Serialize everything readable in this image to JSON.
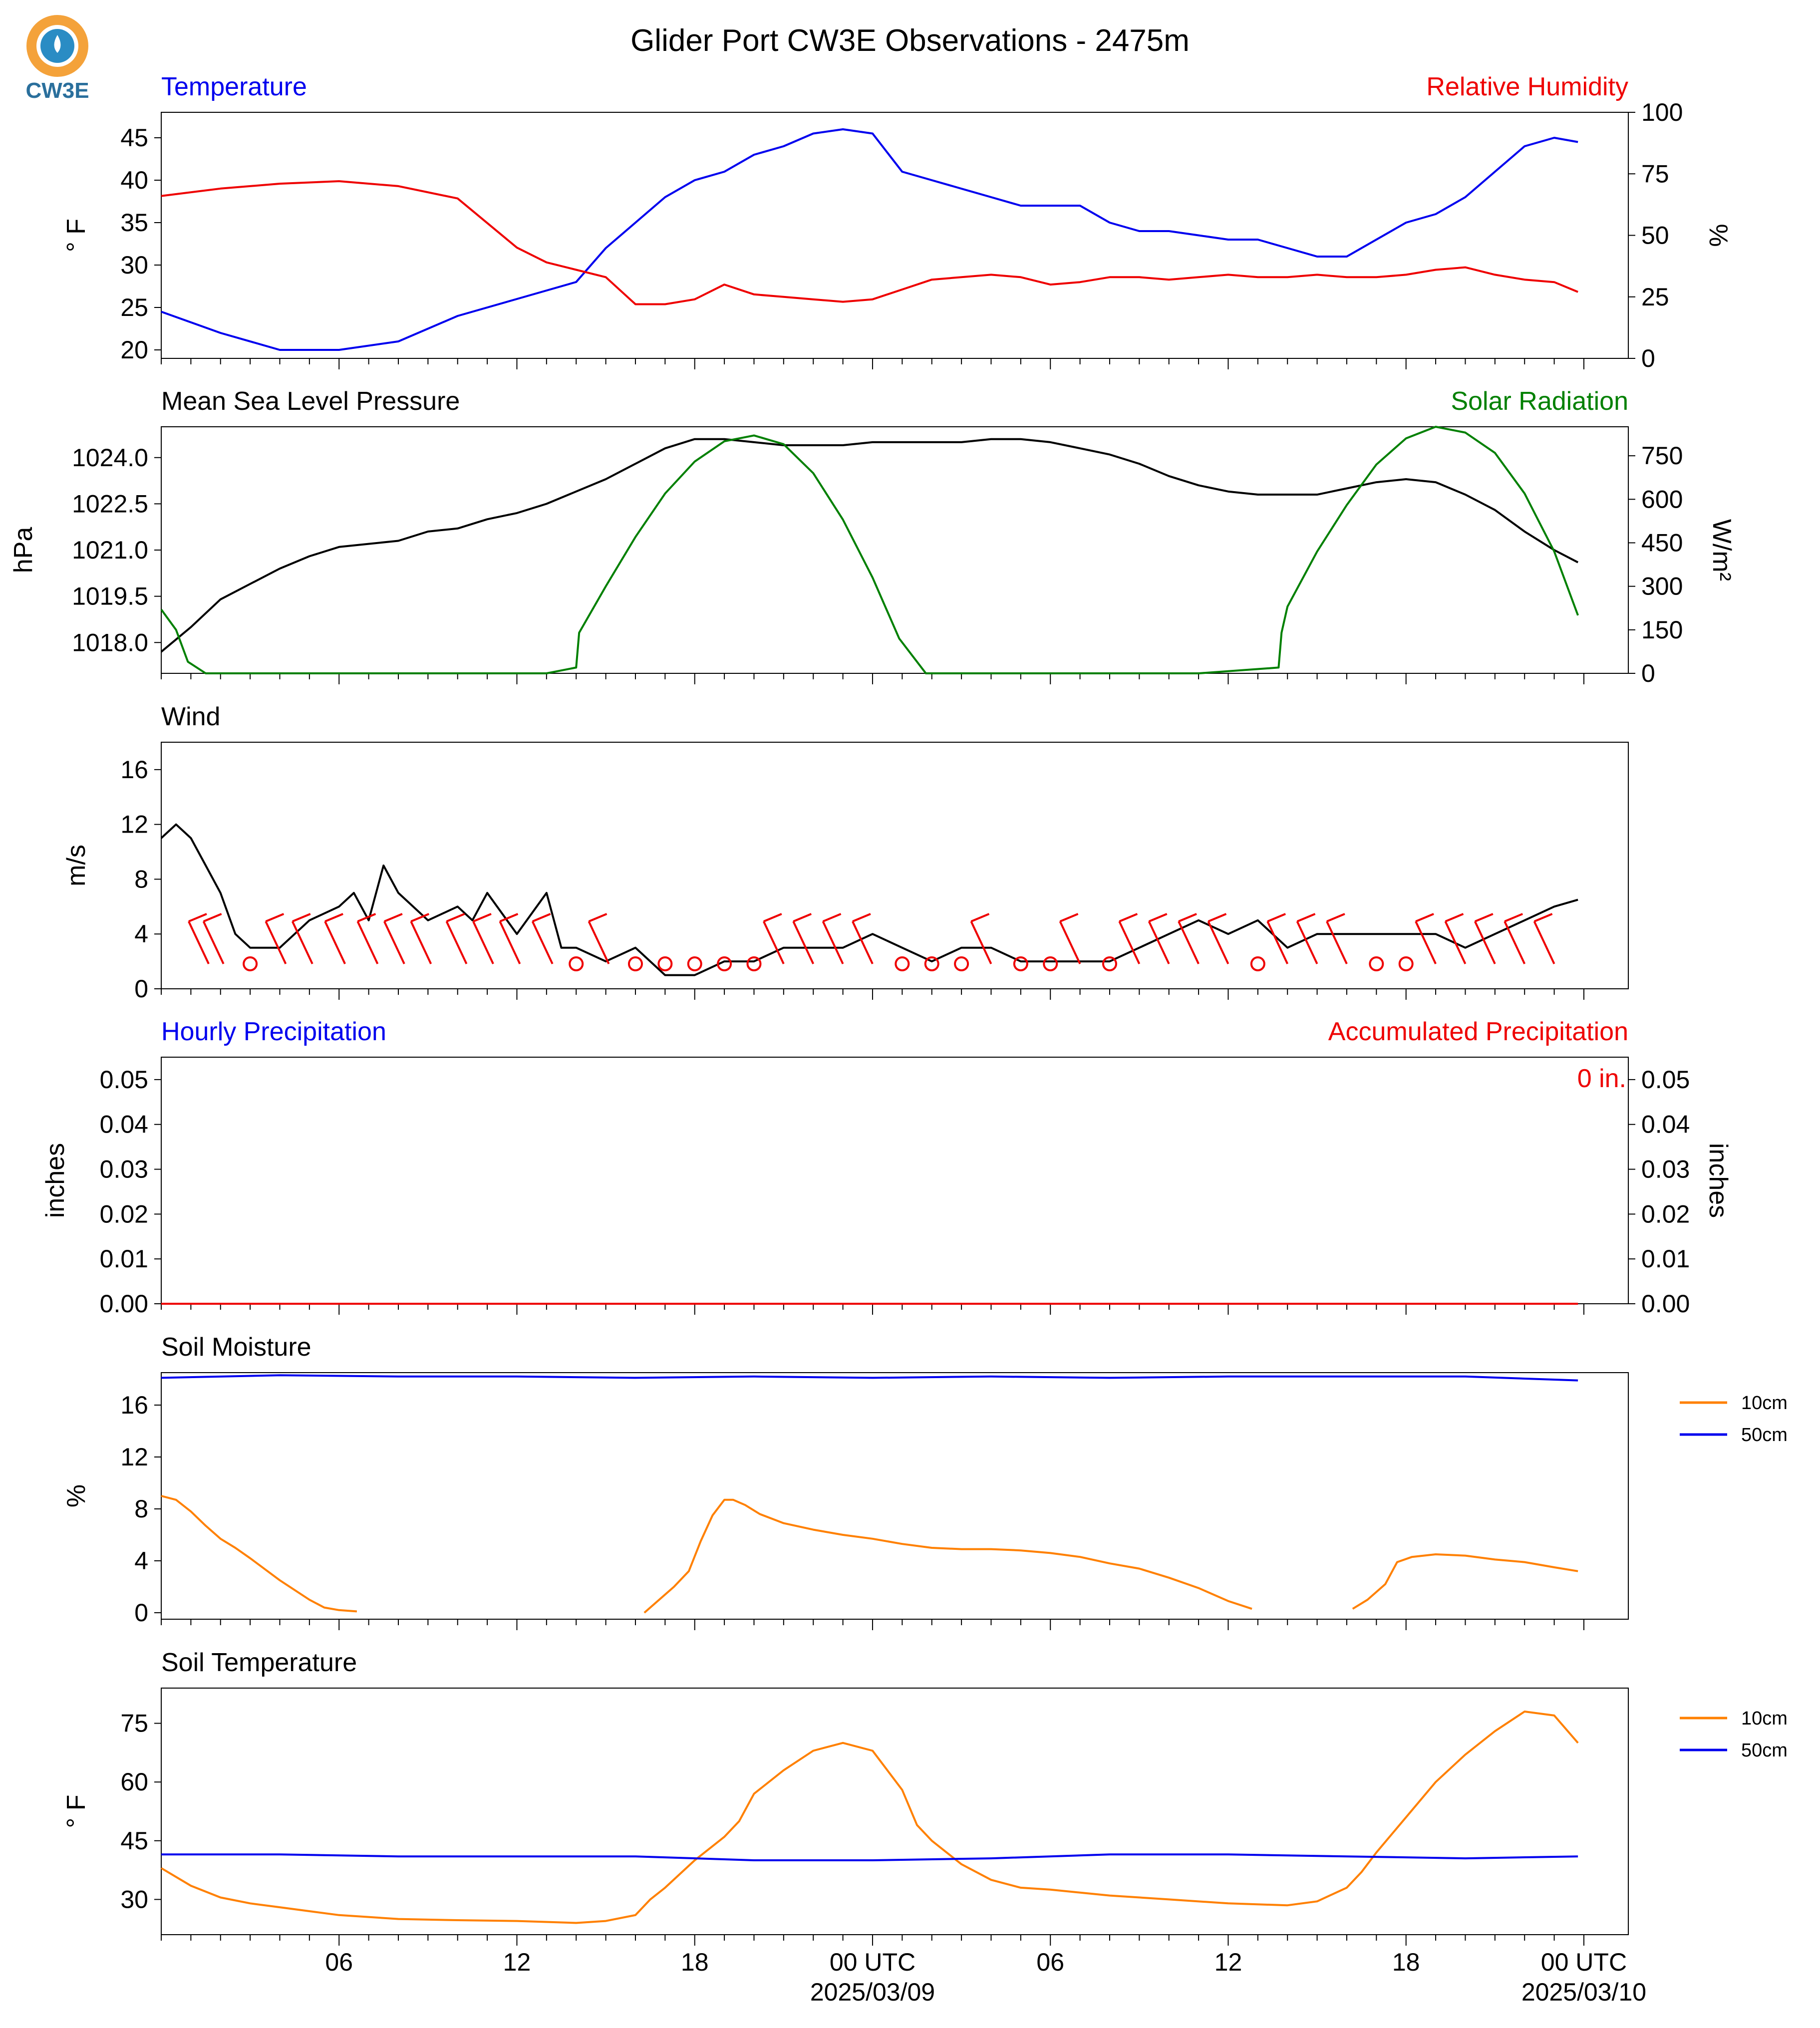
{
  "title": "Glider Port CW3E Observations - 2475m",
  "logo_text": "CW3E",
  "colors": {
    "temperature": "#0000ee",
    "humidity": "#ee0000",
    "pressure": "#000000",
    "solar": "#008000",
    "wind": "#000000",
    "wind_barb": "#ee0000",
    "soil_10cm": "#ff8000",
    "soil_50cm": "#0000ee",
    "logo_orange": "#f4a23a",
    "logo_blue": "#2a8cc4"
  },
  "x_axis": {
    "ticks": [
      "06",
      "12",
      "18",
      "00 UTC",
      "06",
      "12",
      "18",
      "00 UTC"
    ],
    "date_labels": [
      "2025/03/09",
      "2025/03/10"
    ]
  },
  "chart_data": [
    {
      "type": "line",
      "panel": "temperature_humidity",
      "left_title": "Temperature",
      "right_title": "Relative Humidity",
      "ylabel_left": "° F",
      "ylabel_right": "%",
      "yticks_left": [
        "20",
        "25",
        "30",
        "35",
        "40",
        "45"
      ],
      "yticks_right": [
        "0",
        "25",
        "50",
        "75",
        "100"
      ],
      "ylim_left": [
        19,
        48
      ],
      "ylim_right": [
        0,
        100
      ],
      "hours": [
        0,
        2,
        4,
        6,
        8,
        10,
        12,
        13,
        14,
        15,
        16,
        17,
        18,
        19,
        20,
        21,
        22,
        23,
        24,
        25,
        26,
        27,
        28,
        29,
        30,
        31,
        32,
        33,
        34,
        35,
        36,
        37,
        38,
        39,
        40,
        41,
        42,
        43,
        44,
        45,
        46,
        47,
        47.8
      ],
      "series": [
        {
          "name": "Temperature",
          "axis": "left",
          "values": [
            24.5,
            22,
            20,
            20,
            21,
            24,
            26,
            27,
            28,
            32,
            35,
            38,
            40,
            41,
            43,
            44,
            45.5,
            46,
            45.5,
            41,
            40,
            39,
            38,
            37,
            37,
            37,
            35,
            34,
            34,
            33.5,
            33,
            33,
            32,
            31,
            31,
            33,
            35,
            36,
            38,
            41,
            44,
            45,
            44.5
          ]
        },
        {
          "name": "Relative Humidity",
          "axis": "right",
          "values": [
            66,
            69,
            71,
            72,
            70,
            65,
            45,
            39,
            36,
            33,
            22,
            22,
            24,
            30,
            26,
            25,
            24,
            23,
            24,
            28,
            32,
            33,
            34,
            33,
            30,
            31,
            33,
            33,
            32,
            33,
            34,
            33,
            33,
            34,
            33,
            33,
            34,
            36,
            37,
            34,
            32,
            31,
            27
          ]
        }
      ]
    },
    {
      "type": "line",
      "panel": "pressure_solar",
      "left_title": "Mean Sea Level Pressure",
      "right_title": "Solar Radiation",
      "ylabel_left": "hPa",
      "ylabel_right": "W/m²",
      "yticks_left": [
        "1018.0",
        "1019.5",
        "1021.0",
        "1022.5",
        "1024.0"
      ],
      "yticks_right": [
        "0",
        "150",
        "300",
        "450",
        "600",
        "750"
      ],
      "ylim_left": [
        1017,
        1025
      ],
      "ylim_right": [
        0,
        850
      ],
      "series": [
        {
          "name": "Mean Sea Level Pressure",
          "axis": "left",
          "hours": [
            0,
            1,
            2,
            3,
            4,
            5,
            6,
            7,
            8,
            9,
            10,
            11,
            12,
            13,
            14,
            15,
            16,
            17,
            18,
            19,
            20,
            21,
            22,
            23,
            24,
            25,
            26,
            27,
            28,
            29,
            30,
            31,
            32,
            33,
            34,
            35,
            36,
            37,
            38,
            39,
            40,
            41,
            42,
            43,
            44,
            45,
            46,
            47,
            47.8
          ],
          "values": [
            1017.7,
            1018.5,
            1019.4,
            1019.9,
            1020.4,
            1020.8,
            1021.1,
            1021.2,
            1021.3,
            1021.6,
            1021.7,
            1022.0,
            1022.2,
            1022.5,
            1022.9,
            1023.3,
            1023.8,
            1024.3,
            1024.6,
            1024.6,
            1024.5,
            1024.4,
            1024.4,
            1024.4,
            1024.5,
            1024.5,
            1024.5,
            1024.5,
            1024.6,
            1024.6,
            1024.5,
            1024.3,
            1024.1,
            1023.8,
            1023.4,
            1023.1,
            1022.9,
            1022.8,
            1022.8,
            1022.8,
            1023.0,
            1023.2,
            1023.3,
            1023.2,
            1022.8,
            1022.3,
            1021.6,
            1021.0,
            1020.6
          ]
        },
        {
          "name": "Solar Radiation",
          "axis": "right",
          "hours": [
            0,
            0.5,
            0.9,
            1.5,
            5,
            10,
            13,
            14.0,
            14.1,
            15,
            16,
            17,
            18,
            19,
            20,
            21,
            22,
            23,
            24,
            24.9,
            25.8,
            30,
            35,
            37.7,
            37.8,
            38,
            39,
            40,
            41,
            42,
            43,
            44,
            45,
            46,
            47,
            47.8
          ],
          "values": [
            220,
            150,
            40,
            0,
            0,
            0,
            0,
            20,
            140,
            300,
            470,
            620,
            730,
            800,
            820,
            790,
            690,
            530,
            330,
            120,
            0,
            0,
            0,
            20,
            140,
            230,
            420,
            580,
            720,
            810,
            850,
            830,
            760,
            620,
            420,
            200
          ]
        }
      ]
    },
    {
      "type": "line",
      "panel": "wind",
      "left_title": "Wind",
      "ylabel_left": "m/s",
      "yticks_left": [
        "0",
        "4",
        "8",
        "12",
        "16"
      ],
      "ylim_left": [
        0,
        18
      ],
      "hours": [
        0,
        0.5,
        1,
        1.5,
        2,
        2.5,
        3,
        4,
        5,
        6,
        6.5,
        7,
        7.5,
        8,
        9,
        10,
        10.5,
        11,
        12,
        13,
        13.5,
        14,
        15,
        16,
        17,
        18,
        19,
        20,
        21,
        22,
        23,
        24,
        25,
        26,
        27,
        28,
        29,
        30,
        31,
        32,
        33,
        34,
        35,
        36,
        37,
        38,
        39,
        40,
        41,
        42,
        43,
        44,
        45,
        46,
        47,
        47.8
      ],
      "series": [
        {
          "name": "Wind",
          "values": [
            11,
            12,
            11,
            9,
            7,
            4,
            3,
            3,
            5,
            6,
            7,
            5,
            9,
            7,
            5,
            6,
            5,
            7,
            4,
            7,
            3,
            3,
            2,
            3,
            1,
            1,
            2,
            2,
            3,
            3,
            3,
            4,
            3,
            2,
            3,
            3,
            2,
            2,
            2,
            2,
            3,
            4,
            5,
            4,
            5,
            3,
            4,
            4,
            4,
            4,
            4,
            3,
            4,
            5,
            6,
            6.5
          ]
        }
      ],
      "barbs": [
        {
          "hour": 1.6,
          "calm": false
        },
        {
          "hour": 2.1,
          "calm": false
        },
        {
          "hour": 3.0,
          "calm": true
        },
        {
          "hour": 4.2,
          "calm": false
        },
        {
          "hour": 5.1,
          "calm": false
        },
        {
          "hour": 6.2,
          "calm": false
        },
        {
          "hour": 7.3,
          "calm": false
        },
        {
          "hour": 8.2,
          "calm": false
        },
        {
          "hour": 9.1,
          "calm": false
        },
        {
          "hour": 10.3,
          "calm": false
        },
        {
          "hour": 11.2,
          "calm": false
        },
        {
          "hour": 12.1,
          "calm": false
        },
        {
          "hour": 13.2,
          "calm": false
        },
        {
          "hour": 14.0,
          "calm": true
        },
        {
          "hour": 15.1,
          "calm": false
        },
        {
          "hour": 16.0,
          "calm": true
        },
        {
          "hour": 17.0,
          "calm": true
        },
        {
          "hour": 18.0,
          "calm": true
        },
        {
          "hour": 19.0,
          "calm": true
        },
        {
          "hour": 20.0,
          "calm": true
        },
        {
          "hour": 21.0,
          "calm": false
        },
        {
          "hour": 22.0,
          "calm": false
        },
        {
          "hour": 23.0,
          "calm": false
        },
        {
          "hour": 24.0,
          "calm": false
        },
        {
          "hour": 25.0,
          "calm": true
        },
        {
          "hour": 26.0,
          "calm": true
        },
        {
          "hour": 27.0,
          "calm": true
        },
        {
          "hour": 28.0,
          "calm": false
        },
        {
          "hour": 29.0,
          "calm": true
        },
        {
          "hour": 30.0,
          "calm": true
        },
        {
          "hour": 31.0,
          "calm": false
        },
        {
          "hour": 32.0,
          "calm": true
        },
        {
          "hour": 33.0,
          "calm": false
        },
        {
          "hour": 34.0,
          "calm": false
        },
        {
          "hour": 35.0,
          "calm": false
        },
        {
          "hour": 36.0,
          "calm": false
        },
        {
          "hour": 37.0,
          "calm": true
        },
        {
          "hour": 38.0,
          "calm": false
        },
        {
          "hour": 39.0,
          "calm": false
        },
        {
          "hour": 40.0,
          "calm": false
        },
        {
          "hour": 41.0,
          "calm": true
        },
        {
          "hour": 42.0,
          "calm": true
        },
        {
          "hour": 43.0,
          "calm": false
        },
        {
          "hour": 44.0,
          "calm": false
        },
        {
          "hour": 45.0,
          "calm": false
        },
        {
          "hour": 46.0,
          "calm": false
        },
        {
          "hour": 47.0,
          "calm": false
        }
      ]
    },
    {
      "type": "line",
      "panel": "precipitation",
      "left_title": "Hourly Precipitation",
      "right_title": "Accumulated Precipitation",
      "annotation": "0 in.",
      "ylabel_left": "inches",
      "ylabel_right": "inches",
      "yticks_left": [
        "0.00",
        "0.01",
        "0.02",
        "0.03",
        "0.04",
        "0.05"
      ],
      "yticks_right": [
        "0.00",
        "0.01",
        "0.02",
        "0.03",
        "0.04",
        "0.05"
      ],
      "ylim_left": [
        0,
        0.055
      ],
      "ylim_right": [
        0,
        0.055
      ],
      "hours": [
        0,
        47.8
      ],
      "series": [
        {
          "name": "Hourly Precipitation",
          "axis": "left",
          "values": [
            0,
            0
          ]
        },
        {
          "name": "Accumulated Precipitation",
          "axis": "right",
          "values": [
            0,
            0
          ]
        }
      ]
    },
    {
      "type": "line",
      "panel": "soil_moisture",
      "left_title": "Soil Moisture",
      "ylabel_left": "%",
      "yticks_left": [
        "0",
        "4",
        "8",
        "12",
        "16"
      ],
      "ylim_left": [
        -0.5,
        18.5
      ],
      "legend": [
        "10cm",
        "50cm"
      ],
      "series": [
        {
          "name": "10cm",
          "hours": [
            0,
            0.5,
            1,
            1.5,
            2,
            2.5,
            3,
            4,
            5,
            5.5,
            6,
            6.6,
            null,
            16.3,
            16.8,
            17.3,
            17.8,
            18.2,
            18.6,
            19.0,
            19.3,
            19.7,
            20.2,
            21,
            22,
            23,
            24,
            25,
            26,
            27,
            28,
            29,
            30,
            31,
            32,
            33,
            34,
            35,
            36,
            36.8,
            null,
            40.2,
            40.7,
            41.3,
            41.7,
            42.2,
            43,
            44,
            45,
            46,
            47,
            47.8
          ],
          "values": [
            9,
            8.7,
            7.8,
            6.7,
            5.7,
            5,
            4.2,
            2.5,
            1,
            0.4,
            0.2,
            0.1,
            null,
            0,
            1,
            2,
            3.2,
            5.5,
            7.5,
            8.7,
            8.7,
            8.3,
            7.6,
            6.9,
            6.4,
            6,
            5.7,
            5.3,
            5,
            4.9,
            4.9,
            4.8,
            4.6,
            4.3,
            3.8,
            3.4,
            2.7,
            1.9,
            0.9,
            0.3,
            null,
            0.3,
            1,
            2.2,
            3.9,
            4.3,
            4.5,
            4.4,
            4.1,
            3.9,
            3.5,
            3.2
          ]
        },
        {
          "name": "50cm",
          "hours": [
            0,
            4,
            8,
            12,
            16,
            20,
            24,
            28,
            32,
            36,
            40,
            44,
            47.8
          ],
          "values": [
            18.1,
            18.3,
            18.2,
            18.2,
            18.1,
            18.2,
            18.1,
            18.2,
            18.1,
            18.2,
            18.2,
            18.2,
            17.9
          ]
        }
      ]
    },
    {
      "type": "line",
      "panel": "soil_temperature",
      "left_title": "Soil Temperature",
      "ylabel_left": "° F",
      "yticks_left": [
        "30",
        "45",
        "60",
        "75"
      ],
      "ylim_left": [
        21,
        84
      ],
      "legend": [
        "10cm",
        "50cm"
      ],
      "series": [
        {
          "name": "10cm",
          "hours": [
            0,
            1,
            2,
            3,
            4,
            5,
            6,
            8,
            10,
            12,
            14,
            15,
            16,
            16.5,
            17,
            18,
            19,
            19.5,
            20,
            21,
            22,
            23,
            24,
            25,
            25.5,
            26,
            27,
            28,
            29,
            30,
            32,
            34,
            36,
            38,
            39,
            40,
            40.5,
            41,
            42,
            43,
            44,
            45,
            46,
            47,
            47.8
          ],
          "values": [
            38,
            33.5,
            30.5,
            29,
            28,
            27,
            26,
            25,
            24.7,
            24.5,
            24,
            24.5,
            26,
            30,
            33,
            40,
            46,
            50,
            57,
            63,
            68,
            70,
            68,
            58,
            49,
            45,
            39,
            35,
            33,
            32.5,
            31,
            30,
            29,
            28.5,
            29.5,
            33,
            37,
            42,
            51,
            60,
            67,
            73,
            78,
            77,
            70
          ]
        },
        {
          "name": "50cm",
          "hours": [
            0,
            4,
            8,
            12,
            16,
            20,
            24,
            28,
            32,
            36,
            40,
            44,
            47.8
          ],
          "values": [
            41.5,
            41.5,
            41,
            41,
            41,
            40,
            40,
            40.5,
            41.5,
            41.5,
            41,
            40.5,
            41
          ]
        }
      ]
    }
  ]
}
